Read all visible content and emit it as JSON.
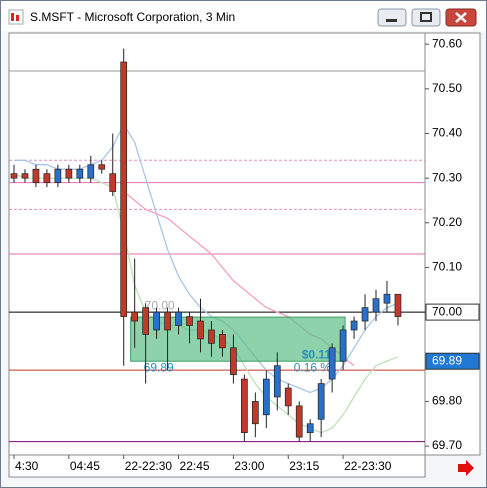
{
  "chart_data": {
    "type": "candlestick",
    "title": "S.MSFT - Microsoft Corporation, 3 Min",
    "categories": [
      "4:30",
      null,
      null,
      null,
      null,
      "04:45",
      null,
      null,
      null,
      null,
      "22-22:30",
      null,
      null,
      null,
      null,
      "22:45",
      null,
      null,
      null,
      null,
      "23:00",
      null,
      null,
      null,
      null,
      "23:15",
      null,
      null,
      null,
      null,
      "22-23:30",
      null,
      null,
      null,
      null,
      null
    ],
    "open": [
      70.31,
      70.31,
      70.32,
      70.31,
      70.29,
      70.32,
      70.3,
      70.3,
      70.33,
      70.31,
      70.56,
      70.0,
      70.01,
      69.96,
      70.0,
      69.97,
      69.99,
      69.98,
      69.96,
      69.95,
      69.92,
      69.85,
      69.8,
      69.77,
      69.81,
      69.83,
      69.79,
      69.73,
      69.76,
      69.85,
      69.89,
      69.96,
      69.98,
      70.0,
      70.02,
      70.04
    ],
    "high": [
      70.33,
      70.32,
      70.33,
      70.32,
      70.33,
      70.33,
      70.33,
      70.35,
      70.34,
      70.4,
      70.59,
      70.12,
      70.02,
      70.01,
      70.01,
      70.01,
      70.0,
      70.03,
      69.98,
      69.96,
      69.95,
      69.86,
      69.82,
      69.87,
      69.91,
      69.84,
      69.8,
      69.76,
      69.85,
      69.93,
      69.97,
      69.99,
      70.04,
      70.05,
      70.07,
      70.04
    ],
    "low": [
      70.29,
      70.29,
      70.28,
      70.28,
      70.28,
      70.29,
      70.29,
      70.29,
      70.31,
      70.26,
      69.88,
      69.92,
      69.84,
      69.94,
      69.87,
      69.95,
      69.93,
      69.91,
      69.9,
      69.9,
      69.84,
      69.71,
      69.72,
      69.74,
      69.78,
      69.77,
      69.71,
      69.71,
      69.72,
      69.82,
      69.87,
      69.94,
      69.96,
      69.98,
      70.0,
      69.97
    ],
    "close": [
      70.3,
      70.3,
      70.29,
      70.29,
      70.32,
      70.3,
      70.32,
      70.33,
      70.32,
      70.27,
      69.99,
      69.98,
      69.95,
      70.0,
      69.96,
      70.0,
      69.97,
      69.94,
      69.93,
      69.92,
      69.86,
      69.73,
      69.75,
      69.85,
      69.88,
      69.79,
      69.72,
      69.75,
      69.84,
      69.92,
      69.96,
      69.98,
      70.01,
      70.03,
      70.04,
      69.99
    ],
    "up_color": "#2a6fc9",
    "down_color": "#c0392b",
    "series": [
      {
        "color": "#a9c6e8",
        "values": [
          70.34,
          70.34,
          70.33,
          70.33,
          70.32,
          70.32,
          70.32,
          70.33,
          70.34,
          70.37,
          70.42,
          70.38,
          70.3,
          70.22,
          70.14,
          70.08,
          70.04,
          70.01,
          69.99,
          69.98,
          69.96,
          69.93,
          69.9,
          69.87,
          69.85,
          69.84,
          69.83,
          69.82,
          69.83,
          69.85,
          69.88,
          69.92,
          69.96,
          69.99,
          70.01,
          70.02
        ]
      },
      {
        "color": "#f2a0c0",
        "values": [
          null,
          null,
          null,
          null,
          null,
          null,
          null,
          null,
          null,
          null,
          70.27,
          70.25,
          70.23,
          70.22,
          70.21,
          70.19,
          70.17,
          70.15,
          70.13,
          70.1,
          70.07,
          70.05,
          70.03,
          70.01,
          70.0,
          69.99,
          69.97,
          69.95,
          69.94,
          69.92,
          69.9,
          69.88,
          null,
          null,
          null,
          null
        ]
      },
      {
        "color": "#bfe0b8",
        "values": [
          70.31,
          70.3,
          70.3,
          70.3,
          70.3,
          70.3,
          70.3,
          70.3,
          70.29,
          70.28,
          70.18,
          70.06,
          70.0,
          69.98,
          69.97,
          69.97,
          69.96,
          69.96,
          69.95,
          69.94,
          69.92,
          69.88,
          69.84,
          69.81,
          69.79,
          69.77,
          69.75,
          69.74,
          69.73,
          69.74,
          69.77,
          69.81,
          69.85,
          69.88,
          69.89,
          69.9
        ]
      }
    ],
    "levels": [
      {
        "value": 70.54,
        "color": "#999999",
        "dashed": false
      },
      {
        "value": 70.34,
        "color": "#e68bc0",
        "dashed": true
      },
      {
        "value": 70.29,
        "color": "#e36fb0",
        "dashed": false
      },
      {
        "value": 70.23,
        "color": "#e68bc0",
        "dashed": true
      },
      {
        "value": 70.13,
        "color": "#e36fb0",
        "dashed": false
      },
      {
        "value": 70.0,
        "color": "#000000",
        "dashed": false
      },
      {
        "value": 69.87,
        "color": "#c0392b",
        "dashed": false
      },
      {
        "value": 69.71,
        "color": "#800080",
        "dashed": false
      }
    ],
    "measure": {
      "start": 70.0,
      "end": 69.89,
      "from_index": 11,
      "to_index": 30,
      "start_label": "70.00",
      "end_label": "69.89",
      "change_label": "$0.11",
      "percent_label": "0.16 %"
    },
    "price_markers": [
      {
        "value": 70.0,
        "label": "70.00",
        "color": "#ffffff"
      },
      {
        "value": 69.89,
        "label": "69.89",
        "color": "#1f78d1"
      }
    ],
    "ylim": [
      69.68,
      70.625
    ],
    "yticks": [
      {
        "value": 70.6,
        "label": "70.60"
      },
      {
        "value": 70.5,
        "label": "70.50"
      },
      {
        "value": 70.4,
        "label": "70.40"
      },
      {
        "value": 70.3,
        "label": "70.30"
      },
      {
        "value": 70.2,
        "label": "70.20"
      },
      {
        "value": 70.1,
        "label": "70.10"
      },
      {
        "value": 69.8,
        "label": "69.80"
      },
      {
        "value": 69.7,
        "label": "69.70"
      }
    ]
  }
}
